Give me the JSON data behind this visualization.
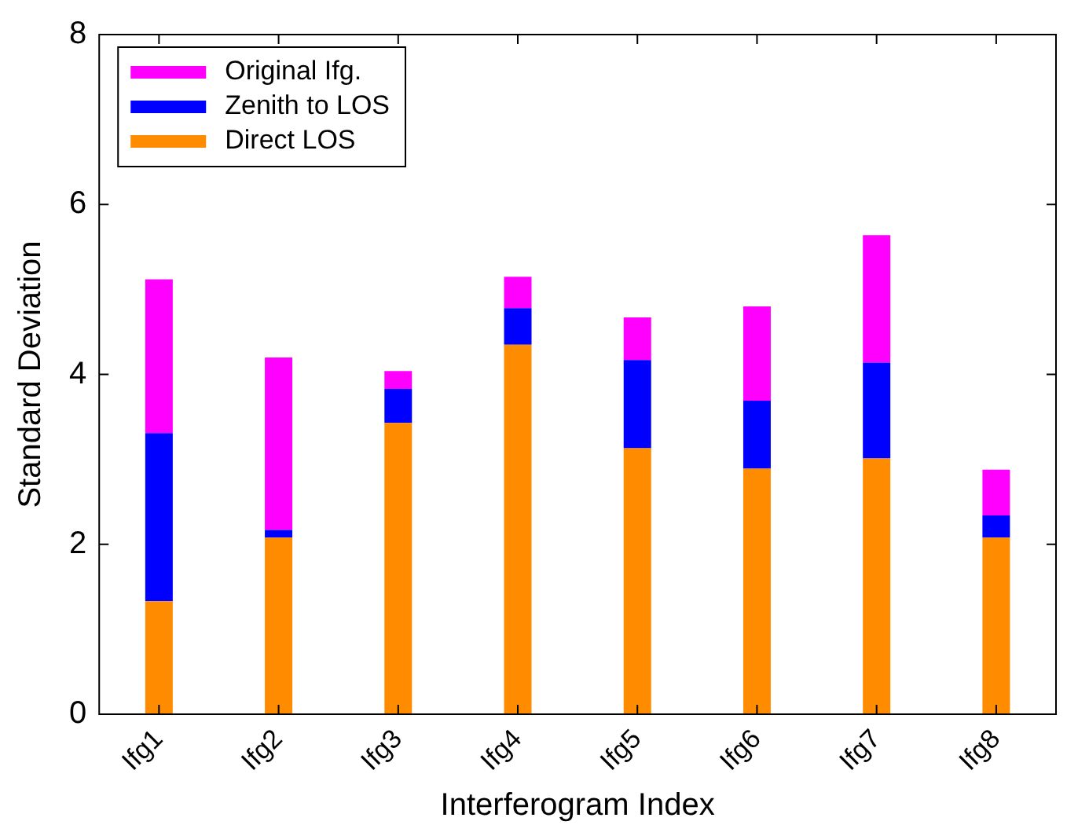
{
  "chart_data": {
    "type": "bar",
    "stacked": true,
    "xlabel": "Interferogram Index",
    "ylabel": "Standard Deviation",
    "categories": [
      "Ifg1",
      "Ifg2",
      "Ifg3",
      "Ifg4",
      "Ifg5",
      "Ifg6",
      "Ifg7",
      "Ifg8"
    ],
    "series": [
      {
        "name": "Direct LOS",
        "color": "#ff8c00",
        "values": [
          1.33,
          2.08,
          3.43,
          4.35,
          3.13,
          2.89,
          3.01,
          2.08
        ]
      },
      {
        "name": "Zenith to LOS",
        "color": "#0000ff",
        "values": [
          1.98,
          0.09,
          0.4,
          0.43,
          1.04,
          0.8,
          1.13,
          0.26
        ]
      },
      {
        "name": "Original Ifg.",
        "color": "#ff00ff",
        "values": [
          1.81,
          2.03,
          0.21,
          0.37,
          0.5,
          1.11,
          1.5,
          0.54
        ]
      }
    ],
    "ylim": [
      0,
      8
    ],
    "yticks": [
      0,
      2,
      4,
      6,
      8
    ],
    "grid": false,
    "legend": "top left"
  }
}
